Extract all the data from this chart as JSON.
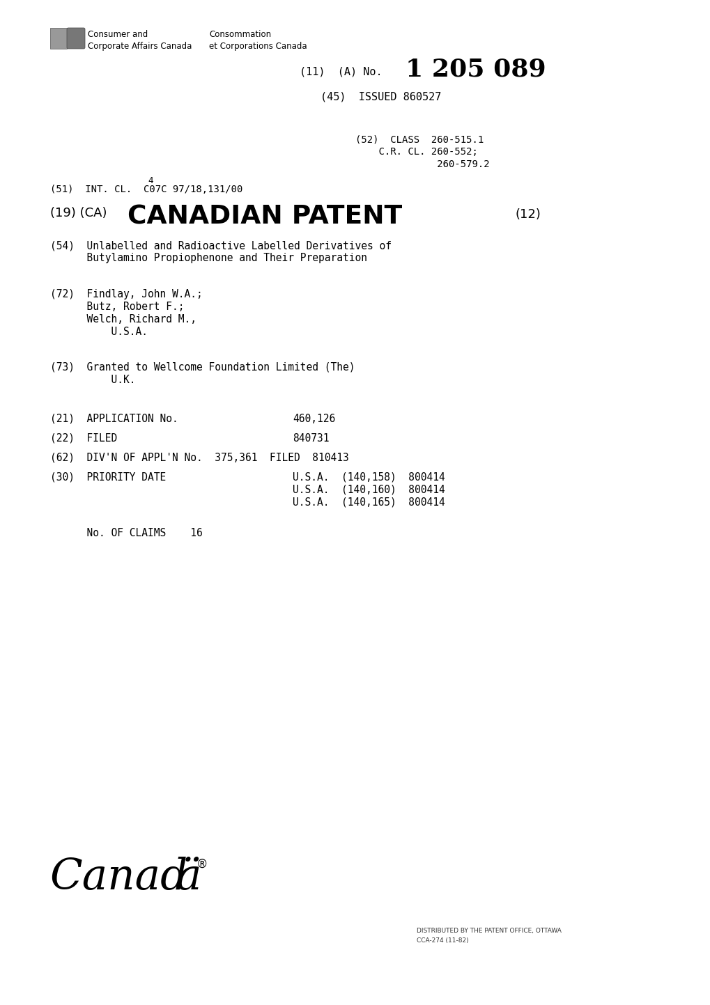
{
  "bg_color": "#ffffff",
  "header_text_en": "Consumer and\nCorporate Affairs Canada",
  "header_text_fr": "Consommation\net Corporations Canada",
  "patent_number_label": "(11)  (A) No.",
  "patent_number": "1 205 089",
  "issued_label": "(45)  ISSUED 860527",
  "class_line1": "(52)  CLASS  260-515.1",
  "class_line2": "    C.R. CL. 260-552;",
  "class_line3": "              260-579.2",
  "int_cl_num": "4",
  "int_cl": "(51)  INT. CL.  C07C 97/18,131/00",
  "cp_prefix": "(19) (CA)",
  "cp_main": "CANADIAN PATENT",
  "cp_suffix": "(12)",
  "title_line1": "(54)  Unlabelled and Radioactive Labelled Derivatives of",
  "title_line2": "      Butylamino Propiophenone and Their Preparation",
  "inv_line1": "(72)  Findlay, John W.A.;",
  "inv_line2": "      Butz, Robert F.;",
  "inv_line3": "      Welch, Richard M.,",
  "inv_line4": "          U.S.A.",
  "granted_line1": "(73)  Granted to Wellcome Foundation Limited (The)",
  "granted_line2": "          U.K.",
  "app_label": "(21)  APPLICATION No.",
  "app_value": "460,126",
  "filed_label": "(22)  FILED",
  "filed_value": "840731",
  "divn_label": "(62)  DIV'N OF APPL'N No.  375,361  FILED  810413",
  "prio_label": "(30)  PRIORITY DATE",
  "prio_col1": "U.S.A.  (140,158)  800414",
  "prio_col2": "U.S.A.  (140,160)  800414",
  "prio_col3": "U.S.A.  (140,165)  800414",
  "claims_line": "      No. OF CLAIMS    16",
  "canada_text": "Canad",
  "canada_a_umlaut": "ä",
  "canada_reg": "®",
  "footer_line1": "DISTRIBUTED BY THE PATENT OFFICE, OTTAWA",
  "footer_line2": "CCA-274 (11-82)"
}
